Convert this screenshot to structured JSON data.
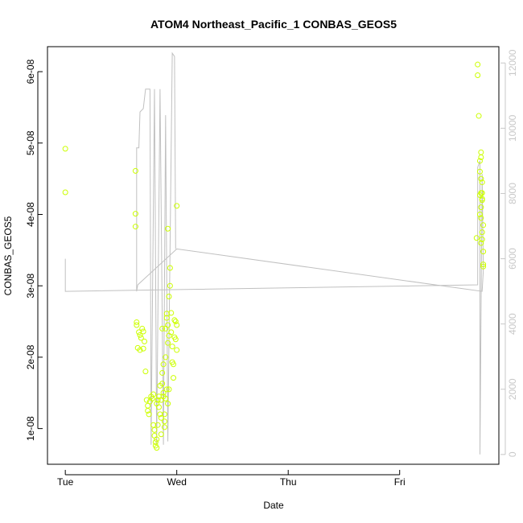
{
  "chart_data": {
    "type": "scatter",
    "title": "ATOM4 Northeast_Pacific_1 CONBAS_GEOS5",
    "xlabel": "Date",
    "ylabel": "CONBAS_GEOS5",
    "x_ticks": [
      "Tue",
      "Wed",
      "Thu",
      "Fri"
    ],
    "x_tick_values": [
      0,
      1,
      2,
      3
    ],
    "xlim": [
      -0.16,
      3.89
    ],
    "y_ticks": [
      "1e-08",
      "2e-08",
      "3e-08",
      "4e-08",
      "5e-08",
      "6e-08"
    ],
    "y_tick_values": [
      1e-08,
      2e-08,
      3e-08,
      4e-08,
      5e-08,
      6e-08
    ],
    "ylim": [
      5e-09,
      6.35e-08
    ],
    "y2_ticks": [
      "0",
      "2000",
      "4000",
      "6000",
      "8000",
      "10000",
      "12000"
    ],
    "y2_tick_values": [
      0,
      2000,
      4000,
      6000,
      8000,
      10000,
      12000
    ],
    "y2lim": [
      -300,
      12500
    ],
    "colors": {
      "points": "#ccff00",
      "line": "#c0c0c0",
      "axis": "#000000",
      "y2axis": "#c8c8c8"
    },
    "series": [
      {
        "marker": "circle",
        "points": [
          [
            0.0,
            4.92e-08
          ],
          [
            0.0,
            4.31e-08
          ],
          [
            0.63,
            4.61e-08
          ],
          [
            0.63,
            4.01e-08
          ],
          [
            0.63,
            3.83e-08
          ],
          [
            0.64,
            2.49e-08
          ],
          [
            0.64,
            2.45e-08
          ],
          [
            0.66,
            2.35e-08
          ],
          [
            0.67,
            2.31e-08
          ],
          [
            0.68,
            2.27e-08
          ],
          [
            0.65,
            2.13e-08
          ],
          [
            0.67,
            2.1e-08
          ],
          [
            0.7,
            2.12e-08
          ],
          [
            0.69,
            2.4e-08
          ],
          [
            0.7,
            2.36e-08
          ],
          [
            0.71,
            2.22e-08
          ],
          [
            0.72,
            1.8e-08
          ],
          [
            0.73,
            1.4e-08
          ],
          [
            0.74,
            1.32e-08
          ],
          [
            0.74,
            1.25e-08
          ],
          [
            0.75,
            1.2e-08
          ],
          [
            0.76,
            1.38e-08
          ],
          [
            0.77,
            1.45e-08
          ],
          [
            0.78,
            1.42e-08
          ],
          [
            0.79,
            1.48e-08
          ],
          [
            0.79,
            1.05e-08
          ],
          [
            0.8,
            9.8e-09
          ],
          [
            0.8,
            9e-09
          ],
          [
            0.81,
            8.1e-09
          ],
          [
            0.81,
            7.6e-09
          ],
          [
            0.82,
            7.3e-09
          ],
          [
            0.82,
            8.5e-09
          ],
          [
            0.83,
            1.05e-08
          ],
          [
            0.84,
            1.45e-08
          ],
          [
            0.84,
            1.3e-08
          ],
          [
            0.85,
            1.2e-08
          ],
          [
            0.86,
            1.15e-08
          ],
          [
            0.86,
            9.2e-09
          ],
          [
            0.87,
            1.78e-08
          ],
          [
            0.87,
            1.63e-08
          ],
          [
            0.88,
            1.5e-08
          ],
          [
            0.88,
            1.45e-08
          ],
          [
            0.89,
            1.02e-08
          ],
          [
            0.89,
            1.1e-08
          ],
          [
            0.9,
            2e-08
          ],
          [
            0.9,
            2.4e-08
          ],
          [
            0.91,
            2.61e-08
          ],
          [
            0.91,
            2.55e-08
          ],
          [
            0.92,
            2.45e-08
          ],
          [
            0.92,
            2.2e-08
          ],
          [
            0.93,
            2.3e-08
          ],
          [
            0.93,
            2.85e-08
          ],
          [
            0.94,
            3e-08
          ],
          [
            0.94,
            3.25e-08
          ],
          [
            0.95,
            2.62e-08
          ],
          [
            0.95,
            2.35e-08
          ],
          [
            0.96,
            2.15e-08
          ],
          [
            0.96,
            1.93e-08
          ],
          [
            0.97,
            1.9e-08
          ],
          [
            0.97,
            1.71e-08
          ],
          [
            0.98,
            2.28e-08
          ],
          [
            0.98,
            2.52e-08
          ],
          [
            0.99,
            2.5e-08
          ],
          [
            0.99,
            2.25e-08
          ],
          [
            1.0,
            2.1e-08
          ],
          [
            1.0,
            2.45e-08
          ],
          [
            0.92,
            3.8e-08
          ],
          [
            1.0,
            4.12e-08
          ],
          [
            0.91,
            1.55e-08
          ],
          [
            0.9,
            1.42e-08
          ],
          [
            0.92,
            1.35e-08
          ],
          [
            0.93,
            1.55e-08
          ],
          [
            0.89,
            1.2e-08
          ],
          [
            0.88,
            1.9e-08
          ],
          [
            0.87,
            2.4e-08
          ],
          [
            0.86,
            1.4e-08
          ],
          [
            0.85,
            1.6e-08
          ],
          [
            0.83,
            1.4e-08
          ],
          [
            0.82,
            1.35e-08
          ],
          [
            3.7,
            6.1e-08
          ],
          [
            3.7,
            5.95e-08
          ],
          [
            3.71,
            5.38e-08
          ],
          [
            3.73,
            4.87e-08
          ],
          [
            3.73,
            4.8e-08
          ],
          [
            3.72,
            4.75e-08
          ],
          [
            3.72,
            4.6e-08
          ],
          [
            3.73,
            4.5e-08
          ],
          [
            3.74,
            4.45e-08
          ],
          [
            3.73,
            4.3e-08
          ],
          [
            3.72,
            4.27e-08
          ],
          [
            3.74,
            4.2e-08
          ],
          [
            3.73,
            4.1e-08
          ],
          [
            3.72,
            4e-08
          ],
          [
            3.73,
            3.95e-08
          ],
          [
            3.75,
            3.85e-08
          ],
          [
            3.74,
            3.75e-08
          ],
          [
            3.74,
            3.65e-08
          ],
          [
            3.73,
            3.6e-08
          ],
          [
            3.69,
            3.67e-08
          ],
          [
            3.75,
            3.48e-08
          ],
          [
            3.75,
            3.3e-08
          ],
          [
            3.75,
            3.27e-08
          ],
          [
            3.74,
            4.3e-08
          ],
          [
            3.74,
            4.22e-08
          ]
        ]
      },
      {
        "axis": "right",
        "marker": "line",
        "points": [
          [
            0.0,
            6000
          ],
          [
            0.0,
            5000
          ],
          [
            3.7,
            5200
          ],
          [
            3.7,
            8800
          ],
          [
            3.72,
            9000
          ],
          [
            3.72,
            0
          ],
          [
            3.74,
            8600
          ],
          [
            3.75,
            5800
          ],
          [
            3.75,
            5600
          ],
          [
            3.74,
            5000
          ],
          [
            1.0,
            6300
          ],
          [
            0.65,
            5200
          ],
          [
            0.64,
            5000
          ],
          [
            0.64,
            9400
          ],
          [
            0.66,
            9400
          ],
          [
            0.67,
            10500
          ],
          [
            0.7,
            10600
          ],
          [
            0.72,
            11200
          ],
          [
            0.76,
            11200
          ],
          [
            0.77,
            300
          ],
          [
            0.8,
            11200
          ],
          [
            0.82,
            300
          ],
          [
            0.85,
            11200
          ],
          [
            0.88,
            300
          ],
          [
            0.9,
            10400
          ],
          [
            0.92,
            400
          ],
          [
            0.96,
            12300
          ],
          [
            0.98,
            12200
          ],
          [
            0.99,
            6300
          ]
        ]
      }
    ]
  }
}
